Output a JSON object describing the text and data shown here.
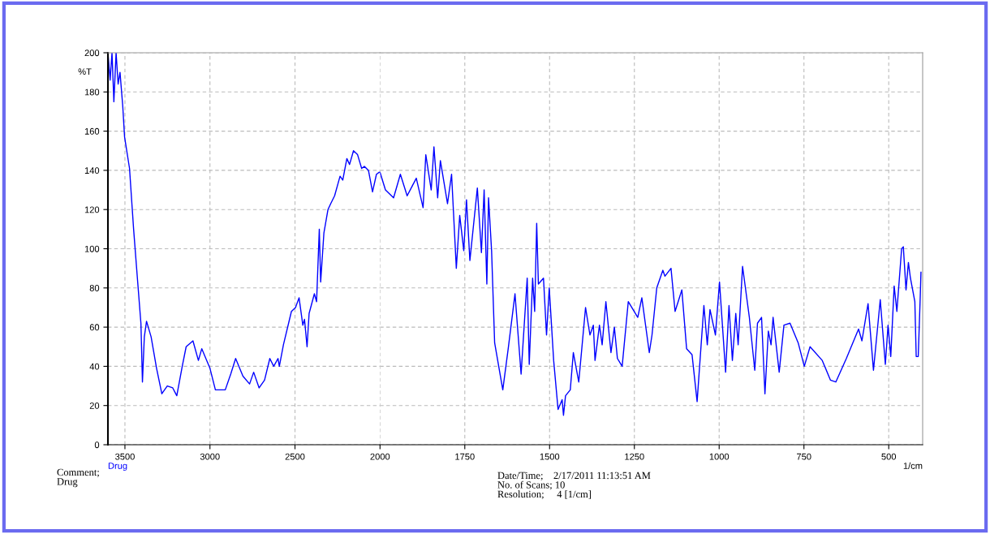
{
  "chart_data": [
    {
      "type": "line",
      "ylabel": "%T",
      "xlim": [
        3600,
        2000
      ],
      "xticks": [
        3500,
        3000,
        2500
      ],
      "ylim": [
        0,
        200
      ],
      "yticks": [
        0,
        20,
        40,
        60,
        80,
        100,
        120,
        140,
        160,
        180,
        200
      ],
      "grid": true,
      "legend": "bottom left",
      "line_style": "solid",
      "annotations": [
        "Comment;",
        "Drug"
      ],
      "series": [
        {
          "name": "Drug",
          "color": "#0000ff",
          "x": [
            3600,
            3587,
            3576,
            3565,
            3552,
            3540,
            3529,
            3513,
            3502,
            3473,
            3449,
            3425,
            3406,
            3397,
            3386,
            3373,
            3346,
            3314,
            3283,
            3251,
            3219,
            3195,
            3163,
            3140,
            3100,
            3068,
            3048,
            3000,
            2968,
            2933,
            2910,
            2878,
            2849,
            2806,
            2767,
            2743,
            2711,
            2679,
            2648,
            2625,
            2600,
            2592,
            2568,
            2521,
            2497,
            2476,
            2454,
            2444,
            2429,
            2417,
            2386,
            2373,
            2357,
            2349,
            2330,
            2306,
            2290,
            2267,
            2235,
            2219,
            2195,
            2179,
            2156,
            2132,
            2108,
            2092,
            2068,
            2044,
            2021,
            2005
          ],
          "values": [
            200,
            186,
            200,
            175,
            200,
            184,
            190,
            173,
            157,
            141,
            110,
            83,
            62,
            32,
            55,
            63,
            55,
            39,
            26,
            30,
            29,
            25,
            40,
            50,
            53,
            43,
            49,
            39,
            28,
            28,
            28,
            36,
            44,
            35,
            31,
            37,
            29,
            33,
            44,
            40,
            44,
            40,
            51,
            68,
            70,
            75,
            61,
            64,
            50,
            67,
            77,
            73,
            110,
            83,
            108,
            120,
            123,
            127,
            137,
            135,
            146,
            143,
            150,
            148,
            141,
            142,
            140,
            129,
            138,
            139
          ]
        }
      ]
    },
    {
      "type": "line",
      "xlabel": "1/cm",
      "xlim": [
        2000,
        400
      ],
      "xticks": [
        2000,
        1750,
        1500,
        1250,
        1000,
        750,
        500
      ],
      "ylim": [
        0,
        200
      ],
      "yticks": [
        0,
        20,
        40,
        60,
        80,
        100,
        120,
        140,
        160,
        180,
        200
      ],
      "tick_labels": "x",
      "grid": true,
      "line_style": "solid",
      "annotations": [
        "Date/Time;    2/17/2011 11:13:51 AM",
        "No. of Scans; 10",
        "Resolution;     4 [1/cm]"
      ],
      "series": [
        {
          "color": "#0000ff",
          "x": [
            2000,
            1984,
            1960,
            1940,
            1920,
            1893,
            1873,
            1865,
            1849,
            1841,
            1830,
            1822,
            1801,
            1789,
            1775,
            1765,
            1753,
            1745,
            1735,
            1713,
            1701,
            1693,
            1685,
            1680,
            1671,
            1662,
            1638,
            1622,
            1602,
            1584,
            1566,
            1560,
            1550,
            1544,
            1538,
            1533,
            1518,
            1509,
            1501,
            1488,
            1475,
            1463,
            1459,
            1453,
            1439,
            1430,
            1414,
            1394,
            1381,
            1371,
            1366,
            1353,
            1345,
            1334,
            1319,
            1309,
            1300,
            1286,
            1268,
            1240,
            1228,
            1206,
            1198,
            1184,
            1166,
            1160,
            1142,
            1130,
            1110,
            1096,
            1080,
            1065,
            1045,
            1035,
            1027,
            1011,
            999,
            981,
            971,
            961,
            951,
            944,
            931,
            911,
            895,
            887,
            875,
            865,
            855,
            847,
            841,
            823,
            809,
            791,
            767,
            749,
            732,
            696,
            672,
            656,
            625,
            589,
            579,
            561,
            545,
            525,
            510,
            502,
            494,
            484,
            476,
            462,
            457,
            449,
            442,
            436,
            423,
            419,
            413,
            407,
            405
          ],
          "values": [
            139,
            130,
            126,
            138,
            127,
            136,
            121,
            148,
            130,
            152,
            126,
            145,
            123,
            138,
            90,
            117,
            99,
            125,
            94,
            131,
            98,
            130,
            82,
            126,
            99,
            52,
            28,
            49,
            77,
            36,
            85,
            41,
            85,
            68,
            113,
            82,
            85,
            56,
            80,
            43,
            18,
            23,
            15,
            25,
            28,
            47,
            32,
            70,
            56,
            61,
            43,
            61,
            51,
            73,
            47,
            60,
            44,
            40,
            73,
            65,
            75,
            47,
            56,
            80,
            89,
            86,
            90,
            68,
            79,
            49,
            46,
            22,
            71,
            51,
            69,
            56,
            83,
            37,
            71,
            43,
            67,
            51,
            91,
            65,
            38,
            62,
            65,
            26,
            58,
            51,
            65,
            37,
            61,
            62,
            52,
            40,
            50,
            43,
            33,
            32,
            44,
            59,
            53,
            72,
            38,
            74,
            41,
            61,
            45,
            81,
            68,
            100,
            101,
            79,
            93,
            85,
            73,
            45,
            45,
            76,
            88
          ]
        }
      ]
    }
  ]
}
